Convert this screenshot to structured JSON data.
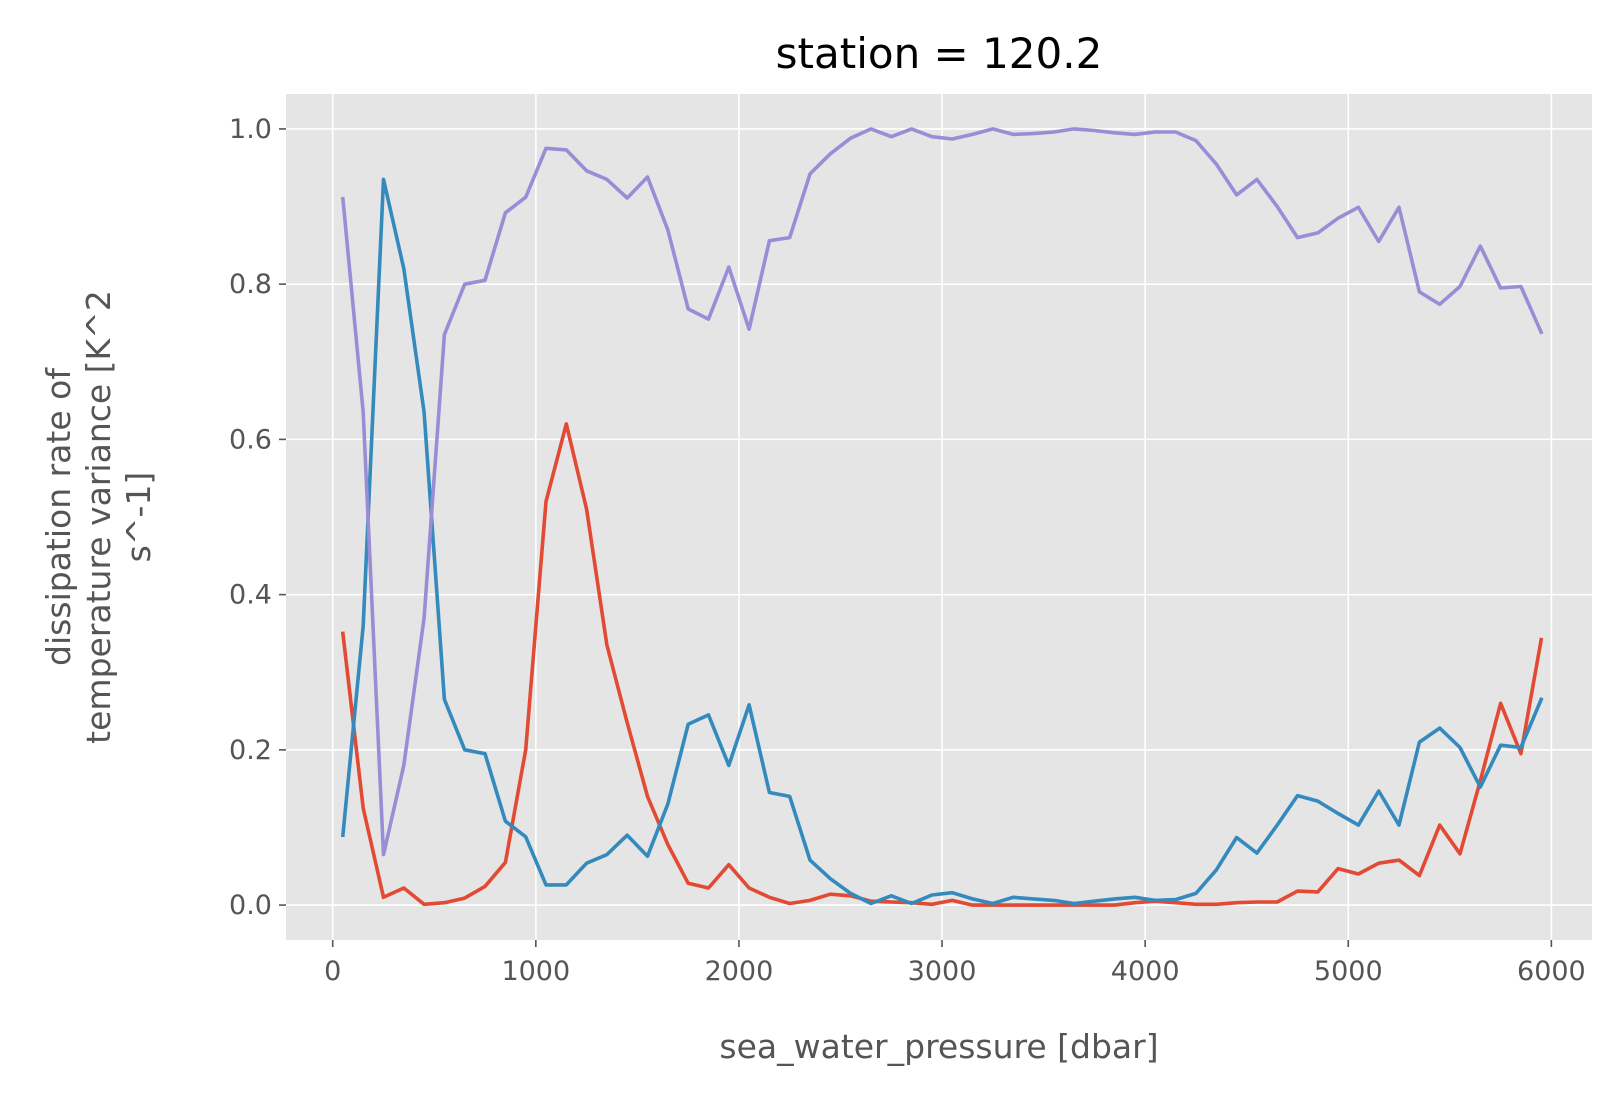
{
  "chart_data": {
    "type": "line",
    "title": "station = 120.2",
    "xlabel": "sea_water_pressure [dbar]",
    "ylabel_lines": [
      "dissipation rate of",
      "temperature variance [K^2",
      "s^-1]"
    ],
    "xlim": [
      -230,
      6200
    ],
    "ylim": [
      -0.045,
      1.045
    ],
    "xticks": [
      0,
      1000,
      2000,
      3000,
      4000,
      5000,
      6000
    ],
    "xtick_labels": [
      "0",
      "1000",
      "2000",
      "3000",
      "4000",
      "5000",
      "6000"
    ],
    "yticks": [
      0.0,
      0.2,
      0.4,
      0.6,
      0.8,
      1.0
    ],
    "ytick_labels": [
      "0.0",
      "0.2",
      "0.4",
      "0.6",
      "0.8",
      "1.0"
    ],
    "grid": true,
    "x": [
      50,
      150,
      250,
      350,
      450,
      550,
      650,
      750,
      850,
      950,
      1050,
      1150,
      1250,
      1350,
      1450,
      1550,
      1650,
      1750,
      1850,
      1950,
      2050,
      2150,
      2250,
      2350,
      2450,
      2550,
      2650,
      2750,
      2850,
      2950,
      3050,
      3150,
      3250,
      3350,
      3450,
      3550,
      3650,
      3750,
      3850,
      3950,
      4050,
      4150,
      4250,
      4350,
      4450,
      4550,
      4650,
      4750,
      4850,
      4950,
      5050,
      5150,
      5250,
      5350,
      5450,
      5550,
      5650,
      5750,
      5850,
      5950
    ],
    "series": [
      {
        "color": "#e24a33",
        "values": [
          0.35,
          0.125,
          0.01,
          0.022,
          0.001,
          0.003,
          0.009,
          0.024,
          0.055,
          0.2,
          0.52,
          0.62,
          0.51,
          0.335,
          0.235,
          0.14,
          0.078,
          0.028,
          0.022,
          0.052,
          0.022,
          0.01,
          0.002,
          0.006,
          0.014,
          0.012,
          0.005,
          0.004,
          0.003,
          0.001,
          0.006,
          0.0,
          0.0,
          0.0,
          0.0,
          0.0,
          0.0,
          0.0,
          0.0,
          0.003,
          0.005,
          0.003,
          0.001,
          0.001,
          0.003,
          0.004,
          0.004,
          0.018,
          0.017,
          0.047,
          0.04,
          0.054,
          0.058,
          0.038,
          0.103,
          0.066,
          0.16,
          0.26,
          0.195,
          0.342
        ]
      },
      {
        "color": "#348abd",
        "values": [
          0.09,
          0.36,
          0.935,
          0.82,
          0.635,
          0.265,
          0.2,
          0.195,
          0.108,
          0.088,
          0.026,
          0.026,
          0.054,
          0.065,
          0.09,
          0.063,
          0.13,
          0.233,
          0.245,
          0.18,
          0.258,
          0.145,
          0.14,
          0.058,
          0.034,
          0.015,
          0.002,
          0.012,
          0.002,
          0.013,
          0.016,
          0.008,
          0.002,
          0.01,
          0.008,
          0.006,
          0.002,
          0.005,
          0.008,
          0.01,
          0.006,
          0.007,
          0.015,
          0.045,
          0.087,
          0.067,
          0.103,
          0.141,
          0.134,
          0.118,
          0.103,
          0.147,
          0.103,
          0.21,
          0.228,
          0.203,
          0.152,
          0.206,
          0.203,
          0.265
        ]
      },
      {
        "color": "#988ed5",
        "values": [
          0.91,
          0.635,
          0.065,
          0.18,
          0.37,
          0.735,
          0.8,
          0.805,
          0.892,
          0.912,
          0.975,
          0.973,
          0.946,
          0.935,
          0.911,
          0.938,
          0.87,
          0.768,
          0.755,
          0.822,
          0.742,
          0.856,
          0.86,
          0.942,
          0.968,
          0.988,
          1.0,
          0.99,
          1.0,
          0.99,
          0.987,
          0.993,
          1.0,
          0.993,
          0.994,
          0.996,
          1.0,
          0.998,
          0.995,
          0.993,
          0.996,
          0.996,
          0.985,
          0.955,
          0.915,
          0.935,
          0.9,
          0.86,
          0.866,
          0.885,
          0.899,
          0.855,
          0.899,
          0.79,
          0.774,
          0.797,
          0.849,
          0.795,
          0.797,
          0.738
        ]
      }
    ]
  }
}
